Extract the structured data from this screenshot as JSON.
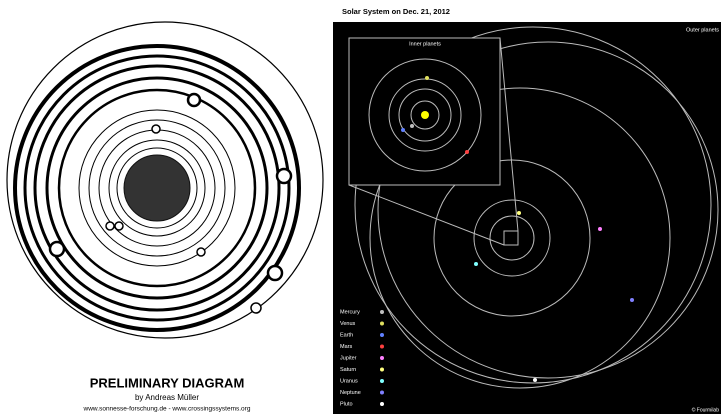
{
  "left": {
    "title": "PRELIMINARY DIAGRAM",
    "byline": "by Andreas Müller",
    "urls": "www.sonnesse-forschung.de - www.crossingssystems.org"
  },
  "right": {
    "title": "Solar System on Dec. 21, 2012",
    "inset_label": "Inner planets",
    "corner_label": "Outer planets",
    "credit": "© Fourmilab",
    "legend": [
      {
        "name": "Mercury",
        "color": "#c0c0c0"
      },
      {
        "name": "Venus",
        "color": "#e0e060"
      },
      {
        "name": "Earth",
        "color": "#6080ff"
      },
      {
        "name": "Mars",
        "color": "#ff4040"
      },
      {
        "name": "Jupiter",
        "color": "#ff80ff"
      },
      {
        "name": "Saturn",
        "color": "#ffff80"
      },
      {
        "name": "Uranus",
        "color": "#80ffff"
      },
      {
        "name": "Neptune",
        "color": "#8080ff"
      },
      {
        "name": "Pluto",
        "color": "#ffffff"
      }
    ]
  }
}
